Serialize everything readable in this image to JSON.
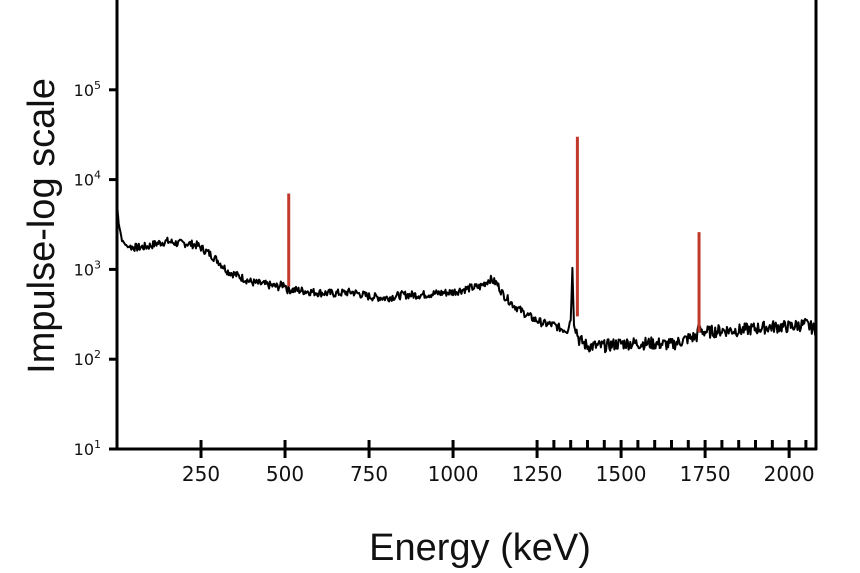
{
  "chart_data": {
    "type": "line",
    "xlabel": "Energy (keV)",
    "ylabel": "Impulse-log scale",
    "x_scale": "linear",
    "y_scale": "log",
    "xlim": [
      0,
      2080
    ],
    "ylim": [
      10,
      1000000
    ],
    "x_ticks": [
      250,
      500,
      750,
      1000,
      1250,
      1500,
      1750,
      2000
    ],
    "y_ticks": [
      {
        "value": 10,
        "base": "10",
        "exp": "1"
      },
      {
        "value": 100,
        "base": "10",
        "exp": "2"
      },
      {
        "value": 1000,
        "base": "10",
        "exp": "3"
      },
      {
        "value": 10000,
        "base": "10",
        "exp": "4"
      },
      {
        "value": 100000,
        "base": "10",
        "exp": "5"
      }
    ],
    "series": [
      {
        "color": "#000000",
        "points": [
          [
            0,
            5500
          ],
          [
            5,
            3300
          ],
          [
            15,
            2100
          ],
          [
            30,
            1800
          ],
          [
            60,
            1750
          ],
          [
            90,
            1800
          ],
          [
            120,
            1950
          ],
          [
            150,
            2050
          ],
          [
            180,
            1950
          ],
          [
            210,
            1950
          ],
          [
            240,
            1850
          ],
          [
            270,
            1550
          ],
          [
            300,
            1250
          ],
          [
            330,
            950
          ],
          [
            360,
            850
          ],
          [
            400,
            720
          ],
          [
            440,
            680
          ],
          [
            480,
            640
          ],
          [
            500,
            700
          ],
          [
            505,
            600
          ],
          [
            550,
            580
          ],
          [
            600,
            550
          ],
          [
            650,
            540
          ],
          [
            700,
            560
          ],
          [
            750,
            500
          ],
          [
            800,
            480
          ],
          [
            850,
            520
          ],
          [
            900,
            520
          ],
          [
            950,
            540
          ],
          [
            1000,
            560
          ],
          [
            1050,
            620
          ],
          [
            1080,
            640
          ],
          [
            1110,
            780
          ],
          [
            1130,
            700
          ],
          [
            1150,
            520
          ],
          [
            1180,
            400
          ],
          [
            1210,
            330
          ],
          [
            1240,
            280
          ],
          [
            1270,
            250
          ],
          [
            1300,
            240
          ],
          [
            1320,
            220
          ],
          [
            1340,
            210
          ],
          [
            1350,
            280
          ],
          [
            1355,
            1000
          ],
          [
            1360,
            260
          ],
          [
            1375,
            165
          ],
          [
            1400,
            140
          ],
          [
            1450,
            140
          ],
          [
            1500,
            150
          ],
          [
            1550,
            150
          ],
          [
            1600,
            150
          ],
          [
            1650,
            145
          ],
          [
            1700,
            170
          ],
          [
            1725,
            180
          ],
          [
            1730,
            210
          ],
          [
            1760,
            200
          ],
          [
            1800,
            210
          ],
          [
            1850,
            210
          ],
          [
            1900,
            220
          ],
          [
            1950,
            230
          ],
          [
            2000,
            230
          ],
          [
            2050,
            245
          ],
          [
            2080,
            210
          ]
        ]
      }
    ],
    "peaks": {
      "color": "#c0392b",
      "items": [
        {
          "x": 511,
          "y": 7000
        },
        {
          "x": 1370,
          "y": 30000
        },
        {
          "x": 1732,
          "y": 2600
        }
      ]
    }
  }
}
